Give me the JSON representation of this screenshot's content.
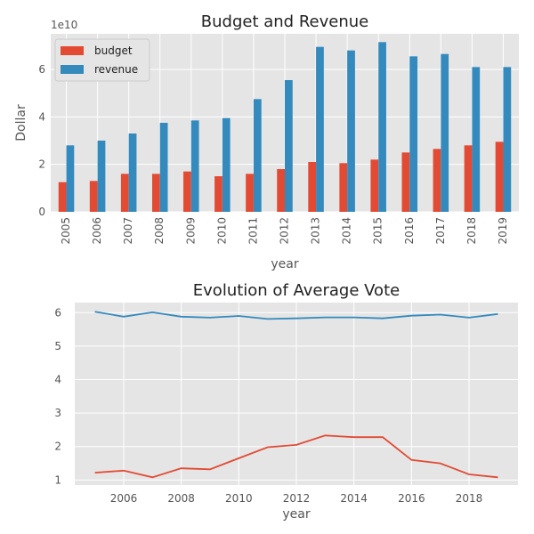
{
  "chart_data": [
    {
      "type": "bar",
      "title": "Budget and Revenue",
      "xlabel": "year",
      "ylabel": "Dollar",
      "y_offset_label": "1e10",
      "ylim": [
        0,
        7.5
      ],
      "yticks": [
        0,
        2,
        4,
        6
      ],
      "grid": true,
      "legend_position": "top-left",
      "categories": [
        "2005",
        "2006",
        "2007",
        "2008",
        "2009",
        "2010",
        "2011",
        "2012",
        "2013",
        "2014",
        "2015",
        "2016",
        "2017",
        "2018",
        "2019"
      ],
      "series": [
        {
          "name": "budget",
          "color": "#E24A33",
          "values": [
            1.25,
            1.3,
            1.6,
            1.6,
            1.7,
            1.5,
            1.6,
            1.8,
            2.1,
            2.05,
            2.2,
            2.5,
            2.65,
            2.8,
            2.95
          ]
        },
        {
          "name": "revenue",
          "color": "#348ABD",
          "values": [
            2.8,
            3.0,
            3.3,
            3.75,
            3.85,
            3.95,
            4.75,
            5.55,
            6.95,
            6.8,
            7.15,
            6.55,
            6.65,
            6.1,
            6.1
          ]
        }
      ]
    },
    {
      "type": "line",
      "title": "Evolution of Average Vote",
      "xlabel": "year",
      "ylabel": "",
      "xlim": [
        2004.3,
        2019.7
      ],
      "ylim": [
        0.85,
        6.3
      ],
      "xticks": [
        2006,
        2008,
        2010,
        2012,
        2014,
        2016,
        2018
      ],
      "yticks": [
        1,
        2,
        3,
        4,
        5,
        6
      ],
      "grid": true,
      "x": [
        2005,
        2006,
        2007,
        2008,
        2009,
        2010,
        2011,
        2012,
        2013,
        2014,
        2015,
        2016,
        2017,
        2018,
        2019
      ],
      "series": [
        {
          "color": "#348ABD",
          "values": [
            6.03,
            5.88,
            6.01,
            5.88,
            5.85,
            5.9,
            5.81,
            5.83,
            5.86,
            5.86,
            5.83,
            5.91,
            5.94,
            5.85,
            5.96
          ]
        },
        {
          "color": "#E24A33",
          "values": [
            1.22,
            1.28,
            1.08,
            1.35,
            1.32,
            1.65,
            1.98,
            2.05,
            2.33,
            2.28,
            2.28,
            1.6,
            1.5,
            1.17,
            1.08
          ]
        }
      ]
    }
  ]
}
